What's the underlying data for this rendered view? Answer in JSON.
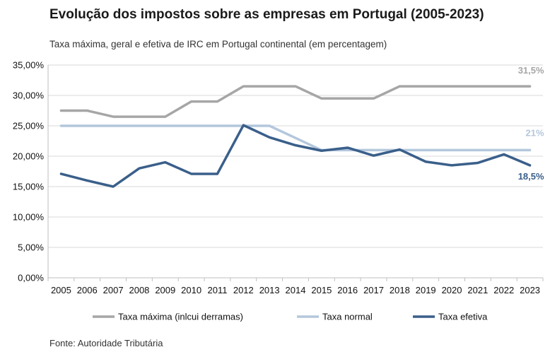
{
  "title": "Evolução dos impostos sobre as empresas em Portugal (2005-2023)",
  "subtitle": "Taxa máxima, geral e efetiva de IRC em Portugal continental (em percentagem)",
  "source": "Fonte: Autoridade Tributária",
  "chart_data": {
    "type": "line",
    "title": "Evolução dos impostos sobre as empresas em Portugal (2005-2023)",
    "subtitle": "Taxa máxima, geral e efetiva de IRC em Portugal continental (em percentagem)",
    "categories": [
      "2005",
      "2006",
      "2007",
      "2008",
      "2009",
      "2010",
      "2011",
      "2012",
      "2013",
      "2014",
      "2015",
      "2016",
      "2017",
      "2018",
      "2019",
      "2020",
      "2021",
      "2022",
      "2023"
    ],
    "ylim": [
      0,
      35
    ],
    "yticks": [
      0,
      5,
      10,
      15,
      20,
      25,
      30,
      35
    ],
    "ytick_labels": [
      "0,00%",
      "5,00%",
      "10,00%",
      "15,00%",
      "20,00%",
      "25,00%",
      "30,00%",
      "35,00%"
    ],
    "grid": "horizontal",
    "legend_position": "bottom",
    "series": [
      {
        "name": "Taxa máxima (inlcui derramas)",
        "color": "#a6a6a6",
        "values": [
          27.5,
          27.5,
          26.5,
          26.5,
          26.5,
          29,
          29,
          31.5,
          31.5,
          31.5,
          29.5,
          29.5,
          29.5,
          31.5,
          31.5,
          31.5,
          31.5,
          31.5,
          31.5
        ],
        "end_label": "31,5%"
      },
      {
        "name": "Taxa normal",
        "color": "#b4c7dc",
        "values": [
          25,
          25,
          25,
          25,
          25,
          25,
          25,
          25,
          25,
          23,
          21,
          21,
          21,
          21,
          21,
          21,
          21,
          21,
          21
        ],
        "end_label": "21%"
      },
      {
        "name": "Taxa efetiva",
        "color": "#3a5f8a",
        "values": [
          17.1,
          16,
          15,
          18,
          19,
          17.1,
          17.1,
          25.1,
          23.1,
          21.8,
          20.9,
          21.4,
          20.1,
          21.1,
          19.1,
          18.5,
          18.9,
          20.3,
          18.5
        ],
        "end_label": "18,5%"
      }
    ]
  }
}
